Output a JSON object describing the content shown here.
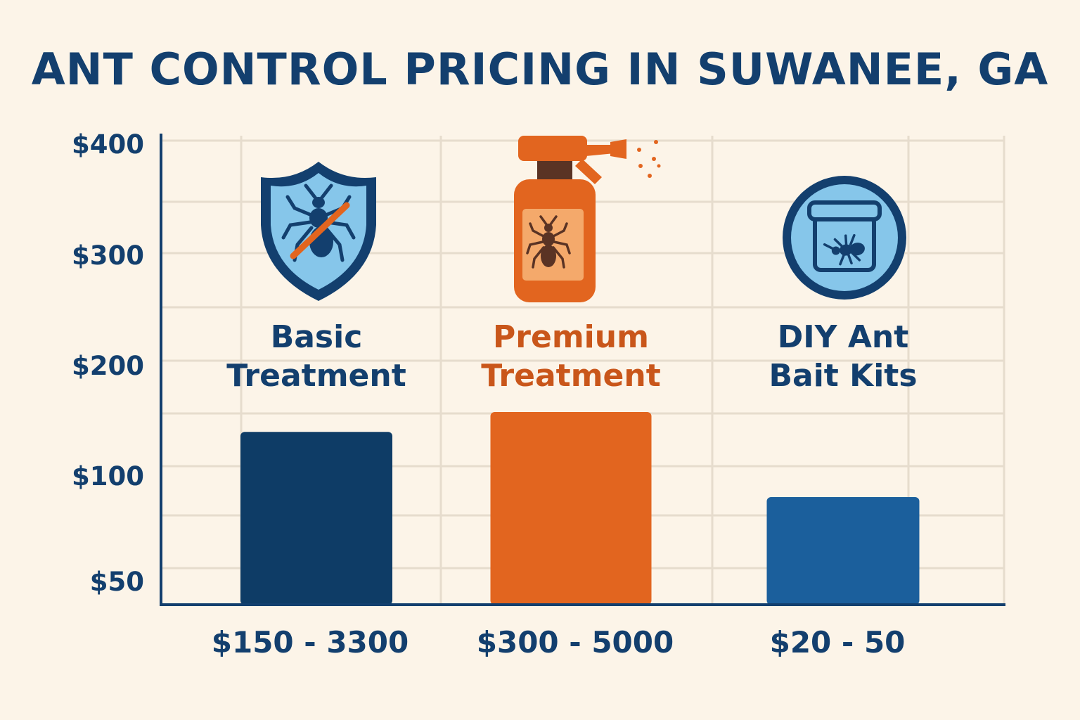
{
  "chart_data": {
    "type": "bar",
    "title": "ANT CONTROL PRICING IN SUWANEE, GA",
    "xlabel": "",
    "ylabel": "",
    "y_tick_labels": [
      "$400",
      "$300",
      "$200",
      "$100",
      "$50"
    ],
    "y_tick_values": [
      400,
      300,
      200,
      100,
      50
    ],
    "ylim": [
      30,
      400
    ],
    "grid": true,
    "legend": "none",
    "categories": [
      {
        "line1": "Basic",
        "line2": "Treatment",
        "range_label": "$150 - 3300",
        "icon": "shield-ant-icon",
        "label_color": "#133f6e",
        "bar_color": "#0e3c66"
      },
      {
        "line1": "Premium",
        "line2": "Treatment",
        "range_label": "$300 - 5000",
        "icon": "spray-bottle-ant-icon",
        "label_color": "#c9561a",
        "bar_color": "#e2651f"
      },
      {
        "line1": "DIY Ant",
        "line2": "Bait Kits",
        "range_label": "$20 - 50",
        "icon": "bait-jar-ant-icon",
        "label_color": "#133f6e",
        "bar_color": "#1b5f9c"
      }
    ],
    "values": [
      140,
      158,
      90
    ]
  }
}
